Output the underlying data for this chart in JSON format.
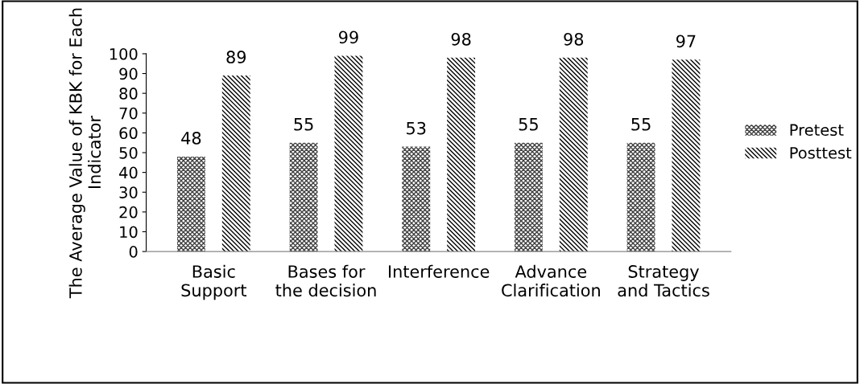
{
  "chart_data": {
    "type": "bar",
    "ylabel": "The Average Value of KBK for Each Indicator",
    "categories": [
      "Basic\nSupport",
      "Bases for\nthe decision",
      "Interference",
      "Advance\nClarification",
      "Strategy\nand Tactics"
    ],
    "series": [
      {
        "name": "Pretest",
        "color": "#404040",
        "values": [
          48,
          55,
          53,
          55,
          55
        ]
      },
      {
        "name": "Posttest",
        "color": "#000000",
        "values": [
          89,
          99,
          98,
          98,
          97
        ]
      }
    ],
    "ylim": [
      0,
      100
    ],
    "yticks": [
      0,
      10,
      20,
      30,
      40,
      50,
      60,
      70,
      80,
      90,
      100
    ],
    "data_labels": true,
    "grid": false,
    "legend": "right"
  }
}
